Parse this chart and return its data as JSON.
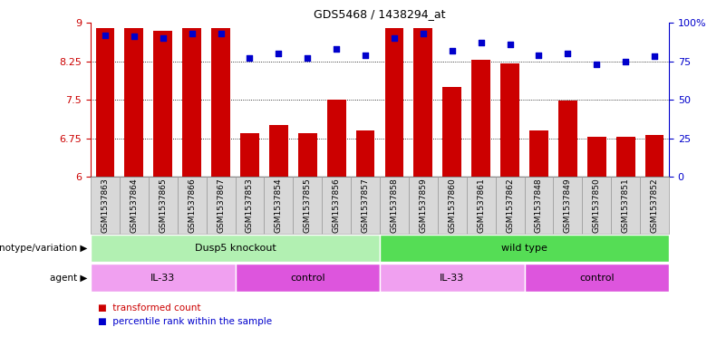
{
  "title": "GDS5468 / 1438294_at",
  "samples": [
    "GSM1537863",
    "GSM1537864",
    "GSM1537865",
    "GSM1537866",
    "GSM1537867",
    "GSM1537853",
    "GSM1537854",
    "GSM1537855",
    "GSM1537856",
    "GSM1537857",
    "GSM1537858",
    "GSM1537859",
    "GSM1537860",
    "GSM1537861",
    "GSM1537862",
    "GSM1537848",
    "GSM1537849",
    "GSM1537850",
    "GSM1537851",
    "GSM1537852"
  ],
  "bar_values": [
    8.9,
    8.9,
    8.85,
    8.9,
    8.9,
    6.85,
    7.0,
    6.85,
    7.5,
    6.9,
    8.9,
    8.9,
    7.75,
    8.28,
    8.21,
    6.9,
    7.48,
    6.78,
    6.78,
    6.82
  ],
  "percentile_values": [
    92,
    91,
    90,
    93,
    93,
    77,
    80,
    77,
    83,
    79,
    90,
    93,
    82,
    87,
    86,
    79,
    80,
    73,
    75,
    78
  ],
  "bar_color": "#cc0000",
  "dot_color": "#0000cc",
  "ylim_left": [
    6,
    9
  ],
  "ylim_right": [
    0,
    100
  ],
  "yticks_left": [
    6,
    6.75,
    7.5,
    8.25,
    9
  ],
  "yticks_right": [
    0,
    25,
    50,
    75,
    100
  ],
  "ytick_labels_left": [
    "6",
    "6.75",
    "7.5",
    "8.25",
    "9"
  ],
  "ytick_labels_right": [
    "0",
    "25",
    "50",
    "75",
    "100%"
  ],
  "genotype_groups": [
    {
      "label": "Dusp5 knockout",
      "start": 0,
      "end": 10,
      "color": "#b2f0b2"
    },
    {
      "label": "wild type",
      "start": 10,
      "end": 20,
      "color": "#55dd55"
    }
  ],
  "agent_groups": [
    {
      "label": "IL-33",
      "start": 0,
      "end": 5,
      "color": "#f0a0f0"
    },
    {
      "label": "control",
      "start": 5,
      "end": 10,
      "color": "#dd55dd"
    },
    {
      "label": "IL-33",
      "start": 10,
      "end": 15,
      "color": "#f0a0f0"
    },
    {
      "label": "control",
      "start": 15,
      "end": 20,
      "color": "#dd55dd"
    }
  ],
  "xtick_bg": "#d8d8d8",
  "xtick_border": "#999999",
  "background_color": "#ffffff"
}
